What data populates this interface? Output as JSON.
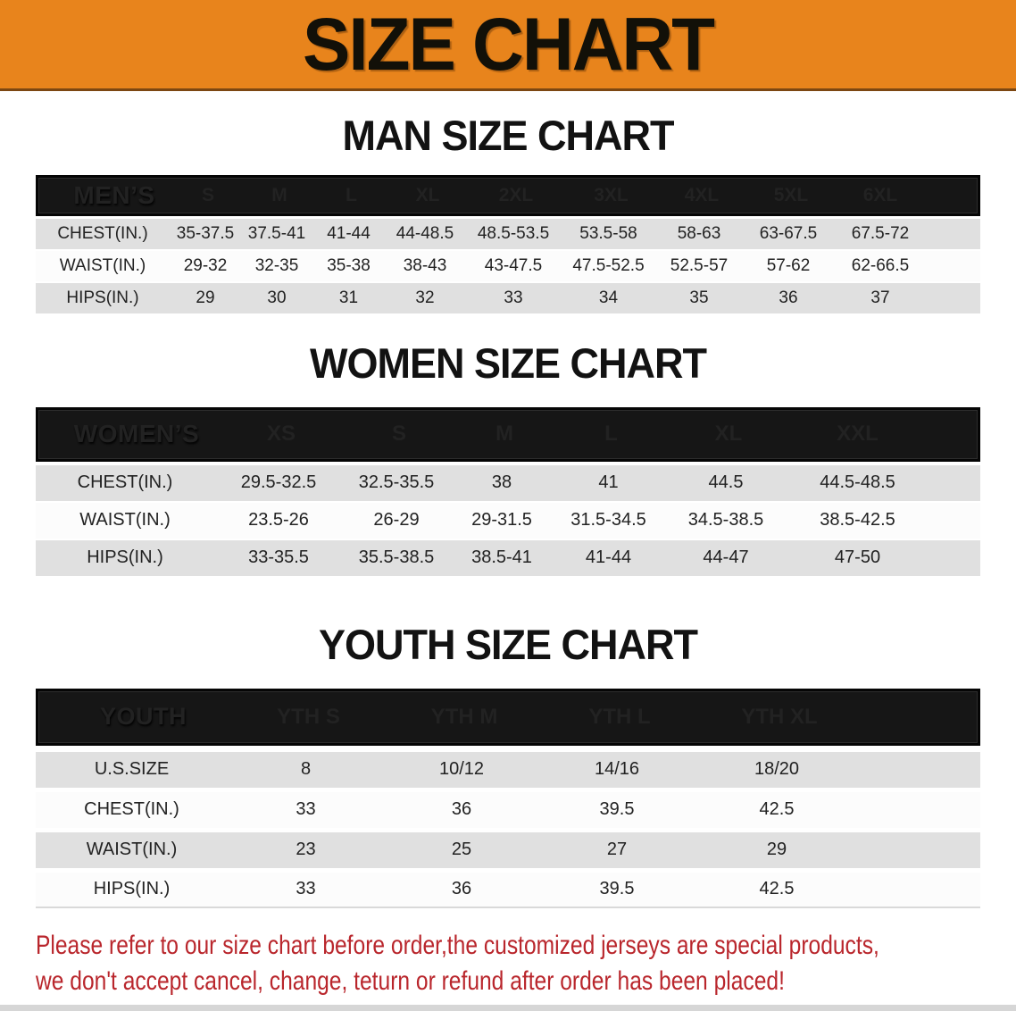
{
  "colors": {
    "banner_bg": "#E8841C",
    "banner_border": "#7C4712",
    "header_bar_bg": "#161616",
    "header_bar_text": "#FFFFFF",
    "row_gray": "#E0E0E0",
    "row_white": "#FCFCFC",
    "cell_text": "#222222",
    "disclaimer_red": "#B9262C"
  },
  "banner": {
    "title": "SIZE CHART"
  },
  "sections": [
    {
      "heading": "MAN SIZE CHART",
      "table": {
        "header_label": "MEN’S",
        "columns": [
          "S",
          "M",
          "L",
          "XL",
          "2XL",
          "3XL",
          "4XL",
          "5XL",
          "6XL"
        ],
        "rows": [
          {
            "label": "CHEST(IN.)",
            "values": [
              "35-37.5",
              "37.5-41",
              "41-44",
              "44-48.5",
              "48.5-53.5",
              "53.5-58",
              "58-63",
              "63-67.5",
              "67.5-72"
            ]
          },
          {
            "label": "WAIST(IN.)",
            "values": [
              "29-32",
              "32-35",
              "35-38",
              "38-43",
              "43-47.5",
              "47.5-52.5",
              "52.5-57",
              "57-62",
              "62-66.5"
            ]
          },
          {
            "label": "HIPS(IN.)",
            "values": [
              "29",
              "30",
              "31",
              "32",
              "33",
              "34",
              "35",
              "36",
              "37"
            ]
          }
        ]
      }
    },
    {
      "heading": "WOMEN SIZE CHART",
      "table": {
        "header_label": "WOMEN’S",
        "columns": [
          "XS",
          "S",
          "M",
          "L",
          "XL",
          "XXL"
        ],
        "rows": [
          {
            "label": "CHEST(IN.)",
            "values": [
              "29.5-32.5",
              "32.5-35.5",
              "38",
              "41",
              "44.5",
              "44.5-48.5"
            ]
          },
          {
            "label": "WAIST(IN.)",
            "values": [
              "23.5-26",
              "26-29",
              "29-31.5",
              "31.5-34.5",
              "34.5-38.5",
              "38.5-42.5"
            ]
          },
          {
            "label": "HIPS(IN.)",
            "values": [
              "33-35.5",
              "35.5-38.5",
              "38.5-41",
              "41-44",
              "44-47",
              "47-50"
            ]
          }
        ]
      }
    },
    {
      "heading": "YOUTH SIZE CHART",
      "table": {
        "header_label": "YOUTH",
        "columns": [
          "YTH S",
          "YTH M",
          "YTH L",
          "YTH XL"
        ],
        "rows": [
          {
            "label": "U.S.SIZE",
            "values": [
              "8",
              "10/12",
              "14/16",
              "18/20"
            ]
          },
          {
            "label": "CHEST(IN.)",
            "values": [
              "33",
              "36",
              "39.5",
              "42.5"
            ]
          },
          {
            "label": "WAIST(IN.)",
            "values": [
              "23",
              "25",
              "27",
              "29"
            ]
          },
          {
            "label": "HIPS(IN.)",
            "values": [
              "33",
              "36",
              "39.5",
              "42.5"
            ]
          }
        ]
      }
    }
  ],
  "disclaimer": {
    "line1": "Please refer to our size chart before order,the customized jerseys are special products,",
    "line2": "we don't accept cancel, change, teturn or refund after order has been placed!"
  }
}
